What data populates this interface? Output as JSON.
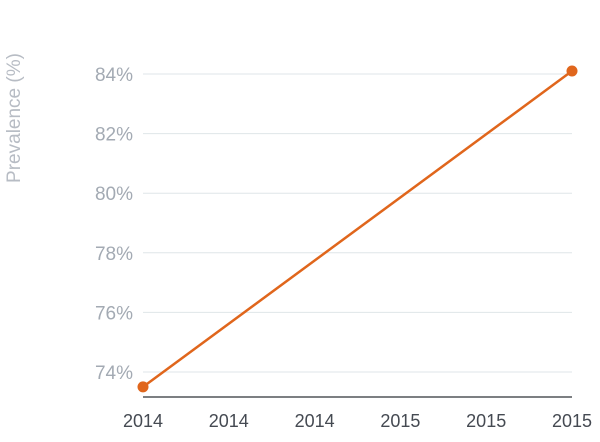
{
  "chart_data": {
    "type": "line",
    "ylabel": "Prevalence (%)",
    "xlabel": "",
    "title": "",
    "x_tick_labels": [
      "2014",
      "2014",
      "2014",
      "2015",
      "2015",
      "2015"
    ],
    "y_tick_labels": [
      "74%",
      "76%",
      "78%",
      "80%",
      "82%",
      "84%"
    ],
    "y_ticks": [
      74,
      76,
      78,
      80,
      82,
      84
    ],
    "ylim": [
      73.0,
      84.4
    ],
    "grid": true,
    "legend": "none",
    "series": [
      {
        "color": "#e0661c",
        "points": [
          {
            "x": 0,
            "y": 73.5
          },
          {
            "x": 5,
            "y": 84.1
          }
        ]
      }
    ]
  }
}
